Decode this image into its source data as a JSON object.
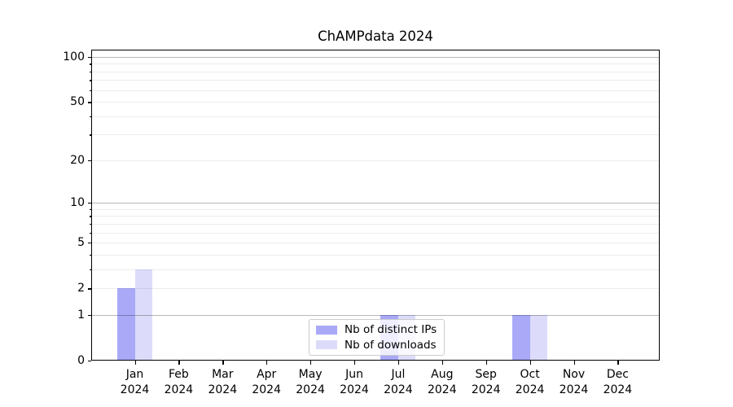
{
  "chart_data": {
    "type": "bar",
    "title": "ChAMPdata 2024",
    "categories": [
      "Jan 2024",
      "Feb 2024",
      "Mar 2024",
      "Apr 2024",
      "May 2024",
      "Jun 2024",
      "Jul 2024",
      "Aug 2024",
      "Sep 2024",
      "Oct 2024",
      "Nov 2024",
      "Dec 2024"
    ],
    "series": [
      {
        "name": "Nb of distinct IPs",
        "color": "#a9a9f8",
        "values": [
          2,
          0,
          0,
          0,
          0,
          0,
          1,
          0,
          0,
          1,
          0,
          0
        ]
      },
      {
        "name": "Nb of downloads",
        "color": "#dcdcfa",
        "values": [
          3,
          0,
          0,
          0,
          0,
          0,
          1,
          0,
          0,
          1,
          0,
          0
        ]
      }
    ],
    "y_axis": {
      "scale": "log1p",
      "tick_labels": [
        0,
        1,
        2,
        5,
        10,
        20,
        50,
        100
      ],
      "major_grid": [
        1,
        10,
        100
      ],
      "minor_grid": [
        2,
        3,
        4,
        5,
        6,
        7,
        8,
        9,
        20,
        30,
        40,
        50,
        60,
        70,
        80,
        90
      ],
      "range": [
        0,
        100
      ]
    },
    "x_axis": {
      "grid": false
    },
    "legend_position": "lower center",
    "colors": {
      "spine": "#000000",
      "major_grid": "#b5b5b5",
      "minor_grid": "#ebebeb"
    }
  }
}
